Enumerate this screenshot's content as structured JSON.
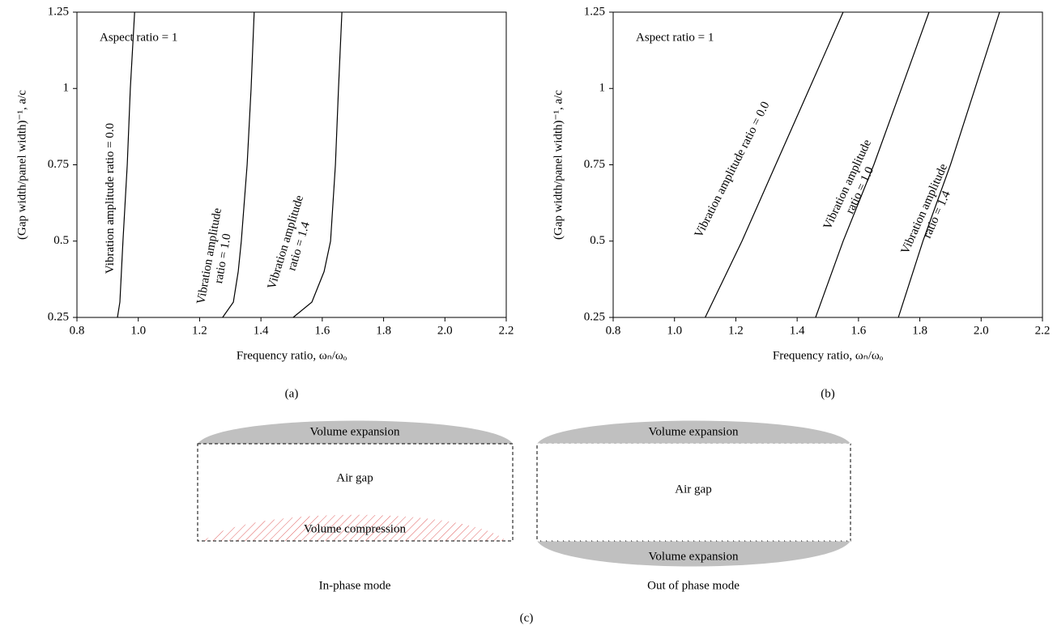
{
  "chart_data": [
    {
      "type": "line",
      "panel_label": "(a)",
      "annotation": "Aspect ratio = 1",
      "xlabel": "Frequency ratio, ωₙ/ωₒ",
      "ylabel": "(Gap width/panel width)⁻¹, a/c",
      "xlim": [
        0.8,
        2.2
      ],
      "ylim": [
        0.25,
        1.25
      ],
      "xticks": [
        0.8,
        {
          "value": 1,
          "label": "1.0"
        },
        1.2,
        1.4,
        1.6,
        1.8,
        {
          "value": 2,
          "label": "2.0"
        },
        2.2
      ],
      "yticks": [
        0.25,
        0.5,
        0.75,
        1,
        1.25
      ],
      "series": [
        {
          "label": [
            "Vibration amplitude ratio = 0.0"
          ],
          "color": "#000000",
          "x": [
            0.932,
            0.94,
            0.945,
            0.95,
            0.964,
            0.974,
            0.988
          ],
          "values": [
            0.25,
            0.3,
            0.4,
            0.5,
            0.75,
            1,
            1.25
          ]
        },
        {
          "label": [
            "Vibration amplitude",
            "ratio = 1.0"
          ],
          "color": "#000000",
          "x": [
            1.275,
            1.31,
            1.326,
            1.336,
            1.355,
            1.368,
            1.378
          ],
          "values": [
            0.25,
            0.3,
            0.4,
            0.5,
            0.75,
            1,
            1.25
          ]
        },
        {
          "label": [
            "Vibration amplitude",
            "ratio = 1.4"
          ],
          "color": "#000000",
          "x": [
            1.505,
            1.566,
            1.606,
            1.627,
            1.643,
            1.653,
            1.664
          ],
          "values": [
            0.25,
            0.3,
            0.4,
            0.5,
            0.75,
            1,
            1.25
          ]
        }
      ]
    },
    {
      "type": "line",
      "panel_label": "(b)",
      "annotation": "Aspect ratio = 1",
      "xlabel": "Frequency ratio, ωₙ/ωₒ",
      "ylabel": "(Gap width/panel width)⁻¹, a/c",
      "xlim": [
        0.8,
        2.2
      ],
      "ylim": [
        0.25,
        1.25
      ],
      "xticks": [
        0.8,
        {
          "value": 1,
          "label": "1.0"
        },
        1.2,
        1.4,
        1.6,
        1.8,
        {
          "value": 2,
          "label": "2.0"
        },
        2.2
      ],
      "yticks": [
        0.25,
        0.5,
        0.75,
        1,
        1.25
      ],
      "series": [
        {
          "label": [
            "Vibration amplitude ratio = 0.0"
          ],
          "color": "#000000",
          "x": [
            1.1,
            1.22,
            1.33,
            1.44,
            1.55
          ],
          "values": [
            0.25,
            0.5,
            0.75,
            1,
            1.25
          ]
        },
        {
          "label": [
            "Vibration amplitude",
            "ratio = 1.0"
          ],
          "color": "#000000",
          "x": [
            1.46,
            1.55,
            1.65,
            1.74,
            1.83
          ],
          "values": [
            0.25,
            0.5,
            0.75,
            1,
            1.25
          ]
        },
        {
          "label": [
            "Vibration amplitude",
            "ratio = 1.4"
          ],
          "color": "#000000",
          "x": [
            1.73,
            1.81,
            1.9,
            1.98,
            2.06
          ],
          "values": [
            0.25,
            0.5,
            0.75,
            1,
            1.25
          ]
        }
      ]
    }
  ],
  "diagram": {
    "panel_label": "(c)",
    "left": {
      "top": "Volume expansion",
      "middle": "Air gap",
      "bottom": "Volume compression",
      "caption": "In-phase mode"
    },
    "right": {
      "top": "Volume expansion",
      "middle": "Air gap",
      "bottom": "Volume expansion",
      "caption": "Out of phase mode"
    }
  }
}
